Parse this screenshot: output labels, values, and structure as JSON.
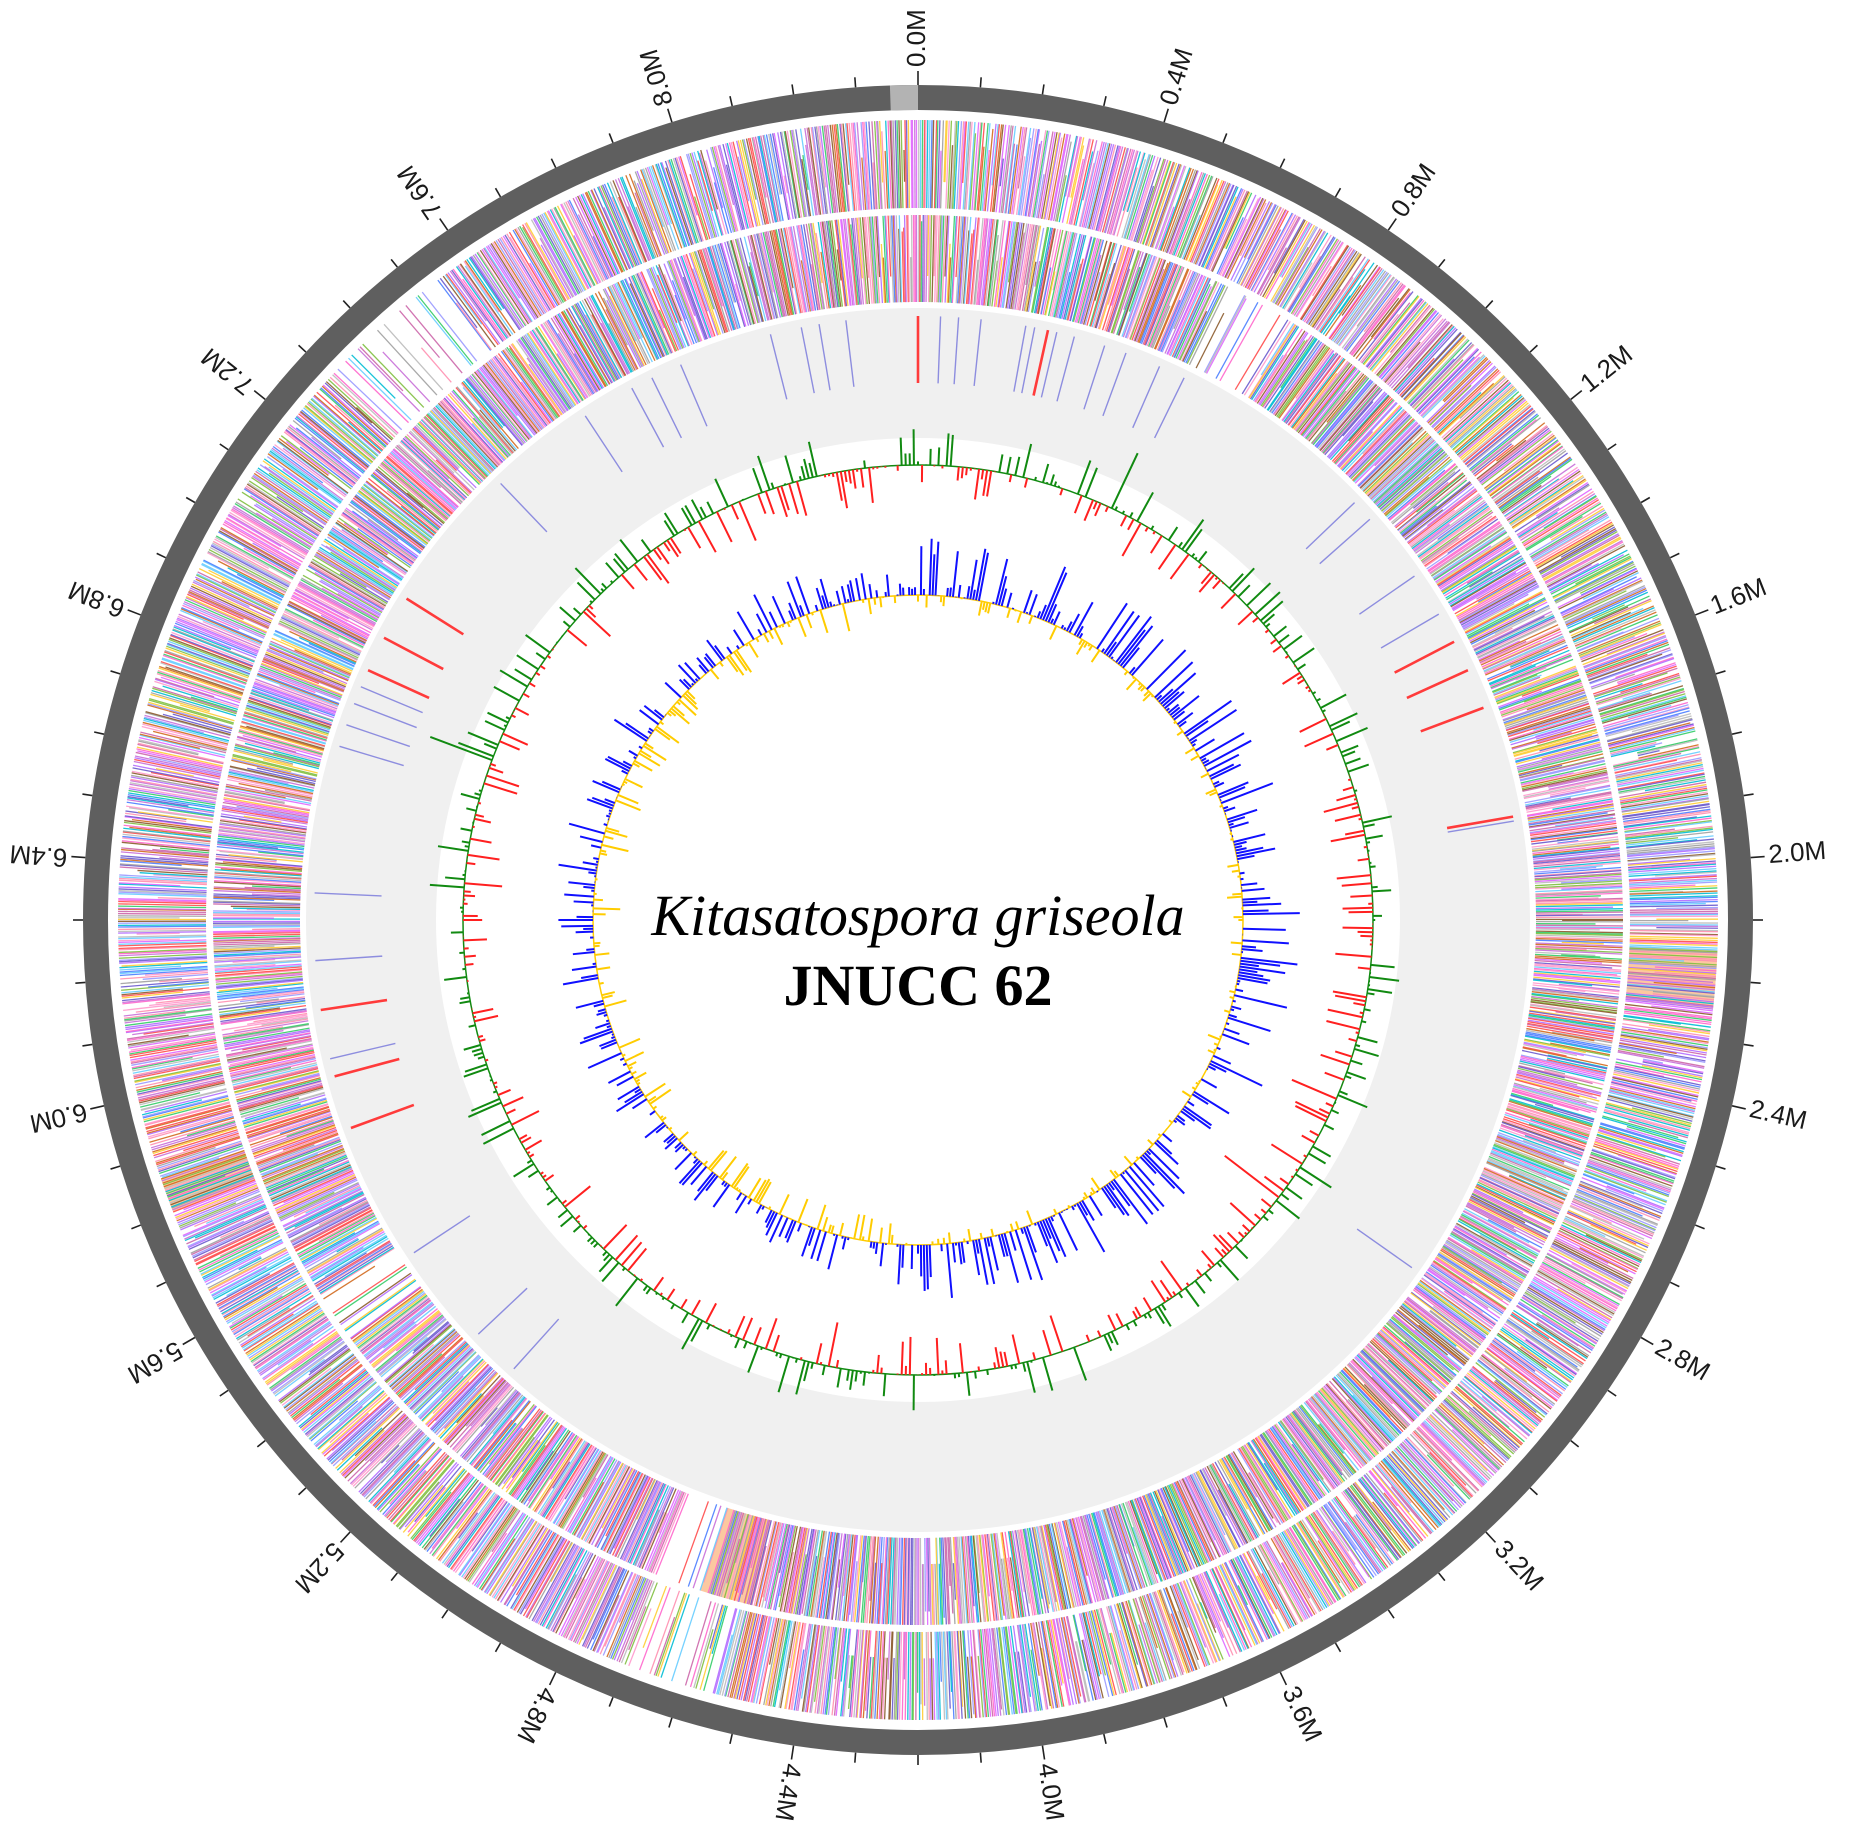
{
  "title": {
    "species": "Kitasatospora griseola",
    "strain": "JNUCC 62"
  },
  "chart_data": {
    "type": "circular-genome-map",
    "genome_length_mb": 8.4,
    "axis": {
      "major_tick_step_mb": 0.4,
      "minor_tick_step_mb": 0.1,
      "tick_labels": [
        "0.0M",
        "0.4M",
        "0.8M",
        "1.2M",
        "1.6M",
        "2.0M",
        "2.4M",
        "2.8M",
        "3.2M",
        "3.6M",
        "4.0M",
        "4.4M",
        "4.8M",
        "5.2M",
        "5.6M",
        "6.0M",
        "6.4M",
        "6.8M",
        "7.2M",
        "7.6M",
        "8.0M"
      ]
    },
    "tracks": [
      {
        "name": "forward-strand-cds"
      },
      {
        "name": "reverse-strand-cds"
      },
      {
        "name": "rna-genes",
        "colors": {
          "rRNA": "#ff3b3b",
          "tRNA": "#7b7bdc"
        }
      },
      {
        "name": "gc-content",
        "colors": {
          "above": "#118a11",
          "below": "#ff2020"
        }
      },
      {
        "name": "gc-skew",
        "colors": {
          "positive": "#1010ff",
          "negative": "#ffcc00"
        }
      }
    ],
    "rna_features": {
      "rRNA_mb": [
        0.0,
        0.29,
        1.46,
        1.53,
        1.62,
        1.87,
        5.83,
        5.95,
        6.1,
        6.87,
        6.95,
        7.05
      ],
      "tRNA_mb": [
        0.05,
        0.09,
        0.14,
        0.24,
        0.26,
        0.31,
        0.35,
        0.42,
        0.47,
        0.55,
        0.61,
        1.08,
        1.13,
        1.29,
        1.39,
        1.88,
        2.92,
        5.18,
        5.29,
        5.52,
        5.99,
        6.21,
        6.36,
        6.69,
        6.74,
        6.79,
        6.83,
        7.05,
        7.38,
        7.62,
        7.74,
        7.79,
        7.86,
        8.07,
        8.14,
        8.18,
        8.24
      ]
    },
    "colors": {
      "outer_ring": "#5f5f5f",
      "origin_marker": "#b3b3b3",
      "rna_track_bg": "#f0f0f0",
      "gap_highlight": "#fcc8a0"
    },
    "gap_regions_mb": [
      {
        "track": "forward-strand-cds",
        "start": 2.15,
        "end": 2.25
      },
      {
        "track": "reverse-strand-cds",
        "start": 4.52,
        "end": 4.62
      },
      {
        "track": "forward-strand-cds",
        "start": 5.8,
        "end": 5.86
      }
    ]
  }
}
